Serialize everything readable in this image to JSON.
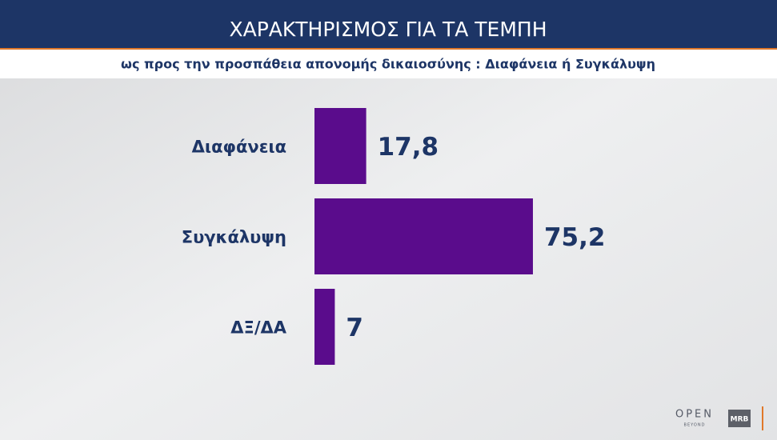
{
  "chart_data": {
    "type": "bar",
    "orientation": "horizontal",
    "title": "ΧΑΡΑΚΤΗΡΙΣΜΟΣ ΓΙΑ ΤΑ ΤΕΜΠΗ",
    "subtitle": "ως προς την προσπάθεια απονομής δικαιοσύνης : Διαφάνεια  ή Συγκάλυψη",
    "categories": [
      "Διαφάνεια",
      "Συγκάλυψη",
      "ΔΞ/ΔΑ"
    ],
    "values": [
      17.8,
      75.2,
      7
    ],
    "value_labels": [
      "17,8",
      "75,2",
      "7"
    ],
    "color": "#5a0c8c"
  },
  "branding": {
    "channel": "OPEN",
    "tagline": "BEYOND",
    "pollster": "MRB"
  }
}
